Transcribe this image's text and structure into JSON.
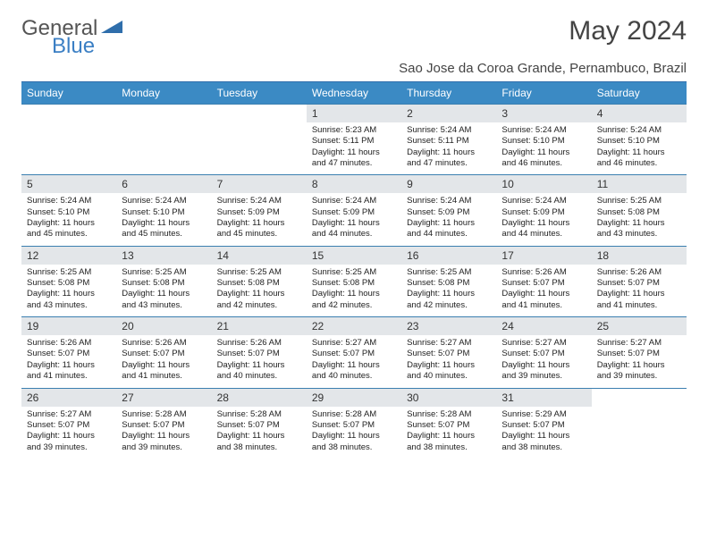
{
  "logo": {
    "text1": "General",
    "text2": "Blue"
  },
  "title": "May 2024",
  "location": "Sao Jose da Coroa Grande, Pernambuco, Brazil",
  "colors": {
    "header_bg": "#3b8ac4",
    "header_text": "#ffffff",
    "daynum_bg": "#e3e6e9",
    "line": "#3b7fb0",
    "logo_gray": "#555555",
    "logo_blue": "#3b7fc4",
    "text": "#222222",
    "background": "#ffffff"
  },
  "typography": {
    "body_font": "Arial",
    "title_size_pt": 22,
    "header_size_pt": 9,
    "cell_size_pt": 7
  },
  "weekdays": [
    "Sunday",
    "Monday",
    "Tuesday",
    "Wednesday",
    "Thursday",
    "Friday",
    "Saturday"
  ],
  "weeks": [
    [
      null,
      null,
      null,
      {
        "n": "1",
        "sr": "5:23 AM",
        "ss": "5:11 PM",
        "dl": "11 hours and 47 minutes."
      },
      {
        "n": "2",
        "sr": "5:24 AM",
        "ss": "5:11 PM",
        "dl": "11 hours and 47 minutes."
      },
      {
        "n": "3",
        "sr": "5:24 AM",
        "ss": "5:10 PM",
        "dl": "11 hours and 46 minutes."
      },
      {
        "n": "4",
        "sr": "5:24 AM",
        "ss": "5:10 PM",
        "dl": "11 hours and 46 minutes."
      }
    ],
    [
      {
        "n": "5",
        "sr": "5:24 AM",
        "ss": "5:10 PM",
        "dl": "11 hours and 45 minutes."
      },
      {
        "n": "6",
        "sr": "5:24 AM",
        "ss": "5:10 PM",
        "dl": "11 hours and 45 minutes."
      },
      {
        "n": "7",
        "sr": "5:24 AM",
        "ss": "5:09 PM",
        "dl": "11 hours and 45 minutes."
      },
      {
        "n": "8",
        "sr": "5:24 AM",
        "ss": "5:09 PM",
        "dl": "11 hours and 44 minutes."
      },
      {
        "n": "9",
        "sr": "5:24 AM",
        "ss": "5:09 PM",
        "dl": "11 hours and 44 minutes."
      },
      {
        "n": "10",
        "sr": "5:24 AM",
        "ss": "5:09 PM",
        "dl": "11 hours and 44 minutes."
      },
      {
        "n": "11",
        "sr": "5:25 AM",
        "ss": "5:08 PM",
        "dl": "11 hours and 43 minutes."
      }
    ],
    [
      {
        "n": "12",
        "sr": "5:25 AM",
        "ss": "5:08 PM",
        "dl": "11 hours and 43 minutes."
      },
      {
        "n": "13",
        "sr": "5:25 AM",
        "ss": "5:08 PM",
        "dl": "11 hours and 43 minutes."
      },
      {
        "n": "14",
        "sr": "5:25 AM",
        "ss": "5:08 PM",
        "dl": "11 hours and 42 minutes."
      },
      {
        "n": "15",
        "sr": "5:25 AM",
        "ss": "5:08 PM",
        "dl": "11 hours and 42 minutes."
      },
      {
        "n": "16",
        "sr": "5:25 AM",
        "ss": "5:08 PM",
        "dl": "11 hours and 42 minutes."
      },
      {
        "n": "17",
        "sr": "5:26 AM",
        "ss": "5:07 PM",
        "dl": "11 hours and 41 minutes."
      },
      {
        "n": "18",
        "sr": "5:26 AM",
        "ss": "5:07 PM",
        "dl": "11 hours and 41 minutes."
      }
    ],
    [
      {
        "n": "19",
        "sr": "5:26 AM",
        "ss": "5:07 PM",
        "dl": "11 hours and 41 minutes."
      },
      {
        "n": "20",
        "sr": "5:26 AM",
        "ss": "5:07 PM",
        "dl": "11 hours and 41 minutes."
      },
      {
        "n": "21",
        "sr": "5:26 AM",
        "ss": "5:07 PM",
        "dl": "11 hours and 40 minutes."
      },
      {
        "n": "22",
        "sr": "5:27 AM",
        "ss": "5:07 PM",
        "dl": "11 hours and 40 minutes."
      },
      {
        "n": "23",
        "sr": "5:27 AM",
        "ss": "5:07 PM",
        "dl": "11 hours and 40 minutes."
      },
      {
        "n": "24",
        "sr": "5:27 AM",
        "ss": "5:07 PM",
        "dl": "11 hours and 39 minutes."
      },
      {
        "n": "25",
        "sr": "5:27 AM",
        "ss": "5:07 PM",
        "dl": "11 hours and 39 minutes."
      }
    ],
    [
      {
        "n": "26",
        "sr": "5:27 AM",
        "ss": "5:07 PM",
        "dl": "11 hours and 39 minutes."
      },
      {
        "n": "27",
        "sr": "5:28 AM",
        "ss": "5:07 PM",
        "dl": "11 hours and 39 minutes."
      },
      {
        "n": "28",
        "sr": "5:28 AM",
        "ss": "5:07 PM",
        "dl": "11 hours and 38 minutes."
      },
      {
        "n": "29",
        "sr": "5:28 AM",
        "ss": "5:07 PM",
        "dl": "11 hours and 38 minutes."
      },
      {
        "n": "30",
        "sr": "5:28 AM",
        "ss": "5:07 PM",
        "dl": "11 hours and 38 minutes."
      },
      {
        "n": "31",
        "sr": "5:29 AM",
        "ss": "5:07 PM",
        "dl": "11 hours and 38 minutes."
      },
      null
    ]
  ],
  "labels": {
    "sunrise": "Sunrise:",
    "sunset": "Sunset:",
    "daylight": "Daylight:"
  }
}
